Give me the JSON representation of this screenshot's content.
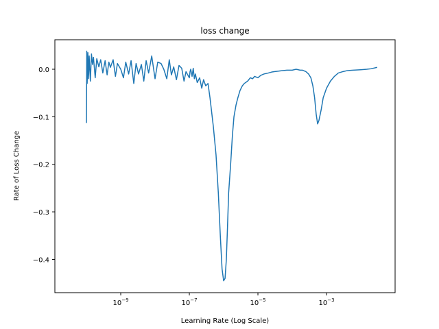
{
  "chart_data": {
    "type": "line",
    "title": "loss change",
    "xlabel": "Learning Rate (Log Scale)",
    "ylabel": "Rate of Loss Change",
    "xscale": "log",
    "xlim": [
      1.2e-11,
      0.1
    ],
    "ylim": [
      -0.47,
      0.062
    ],
    "grid": false,
    "color": "#1f77b4",
    "x_ticks": [
      {
        "value": 1e-09,
        "base": "10",
        "exp": "−9"
      },
      {
        "value": 1e-07,
        "base": "10",
        "exp": "−7"
      },
      {
        "value": 1e-05,
        "base": "10",
        "exp": "−5"
      },
      {
        "value": 0.001,
        "base": "10",
        "exp": "−3"
      }
    ],
    "y_ticks": [
      {
        "value": 0.0,
        "label": "0.0"
      },
      {
        "value": -0.1,
        "label": "−0.1"
      },
      {
        "value": -0.2,
        "label": "−0.2"
      },
      {
        "value": -0.3,
        "label": "−0.3"
      },
      {
        "value": -0.4,
        "label": "−0.4"
      }
    ],
    "series": [
      {
        "x": [
          1e-10,
          1.02e-10,
          1.05e-10,
          1.1e-10,
          1.15e-10,
          1.2e-10,
          1.3e-10,
          1.4e-10,
          1.5e-10,
          1.6e-10,
          1.8e-10,
          2e-10,
          2.3e-10,
          2.6e-10,
          3e-10,
          3.5e-10,
          4e-10,
          4.5e-10,
          5e-10,
          6e-10,
          7e-10,
          8e-10,
          1e-09,
          1.2e-09,
          1.4e-09,
          1.7e-09,
          2e-09,
          2.4e-09,
          2.8e-09,
          3.3e-09,
          4e-09,
          4.7e-09,
          5.5e-09,
          6.5e-09,
          8e-09,
          1e-08,
          1.2e-08,
          1.5e-08,
          1.8e-08,
          2.2e-08,
          2.6e-08,
          3e-08,
          3.5e-08,
          4.2e-08,
          5e-08,
          6e-08,
          7e-08,
          8e-08,
          9e-08,
          1e-07,
          1.05e-07,
          1.1e-07,
          1.2e-07,
          1.3e-07,
          1.4e-07,
          1.5e-07,
          1.7e-07,
          2e-07,
          2.3e-07,
          2.6e-07,
          3e-07,
          3.5e-07,
          4e-07,
          5e-07,
          6e-07,
          7e-07,
          8e-07,
          9e-07,
          1e-06,
          1.1e-06,
          1.2e-06,
          1.3e-06,
          1.4e-06,
          1.6e-06,
          1.8e-06,
          2e-06,
          2.3e-06,
          2.6e-06,
          3e-06,
          3.5e-06,
          4e-06,
          5e-06,
          6e-06,
          7e-06,
          8e-06,
          1e-05,
          1.2e-05,
          1.5e-05,
          2e-05,
          2.5e-05,
          3e-05,
          4e-05,
          5e-05,
          7e-05,
          0.0001,
          0.00013,
          0.00017,
          0.0002,
          0.00025,
          0.0003,
          0.00035,
          0.0004,
          0.00045,
          0.0005,
          0.00055,
          0.0006,
          0.0007,
          0.0008,
          0.001,
          0.0013,
          0.0017,
          0.0022,
          0.003,
          0.004,
          0.006,
          0.01,
          0.015,
          0.02,
          0.03
        ],
        "y": [
          -0.113,
          0.038,
          -0.03,
          0.035,
          -0.02,
          0.028,
          -0.025,
          0.032,
          0.01,
          0.025,
          -0.018,
          0.022,
          0.005,
          0.02,
          -0.008,
          0.018,
          -0.012,
          0.015,
          0.004,
          0.02,
          -0.015,
          0.012,
          0.0,
          -0.018,
          0.015,
          -0.01,
          0.018,
          -0.03,
          0.012,
          -0.01,
          0.01,
          -0.025,
          0.018,
          -0.008,
          0.028,
          -0.02,
          0.015,
          0.012,
          0.0,
          -0.02,
          0.02,
          -0.012,
          0.005,
          -0.022,
          0.008,
          0.002,
          -0.025,
          -0.005,
          -0.012,
          -0.018,
          -0.005,
          0.0,
          -0.015,
          0.002,
          -0.02,
          -0.01,
          -0.028,
          -0.018,
          -0.04,
          -0.022,
          -0.035,
          -0.03,
          -0.06,
          -0.12,
          -0.18,
          -0.26,
          -0.35,
          -0.42,
          -0.445,
          -0.44,
          -0.4,
          -0.33,
          -0.26,
          -0.2,
          -0.14,
          -0.1,
          -0.075,
          -0.06,
          -0.045,
          -0.035,
          -0.03,
          -0.025,
          -0.018,
          -0.02,
          -0.015,
          -0.018,
          -0.013,
          -0.01,
          -0.008,
          -0.006,
          -0.005,
          -0.004,
          -0.003,
          -0.002,
          -0.002,
          0.0,
          -0.002,
          -0.002,
          -0.005,
          -0.01,
          -0.018,
          -0.035,
          -0.06,
          -0.095,
          -0.115,
          -0.108,
          -0.085,
          -0.06,
          -0.04,
          -0.025,
          -0.015,
          -0.008,
          -0.005,
          -0.003,
          -0.002,
          -0.001,
          0.0,
          0.001,
          0.004
        ]
      }
    ]
  }
}
